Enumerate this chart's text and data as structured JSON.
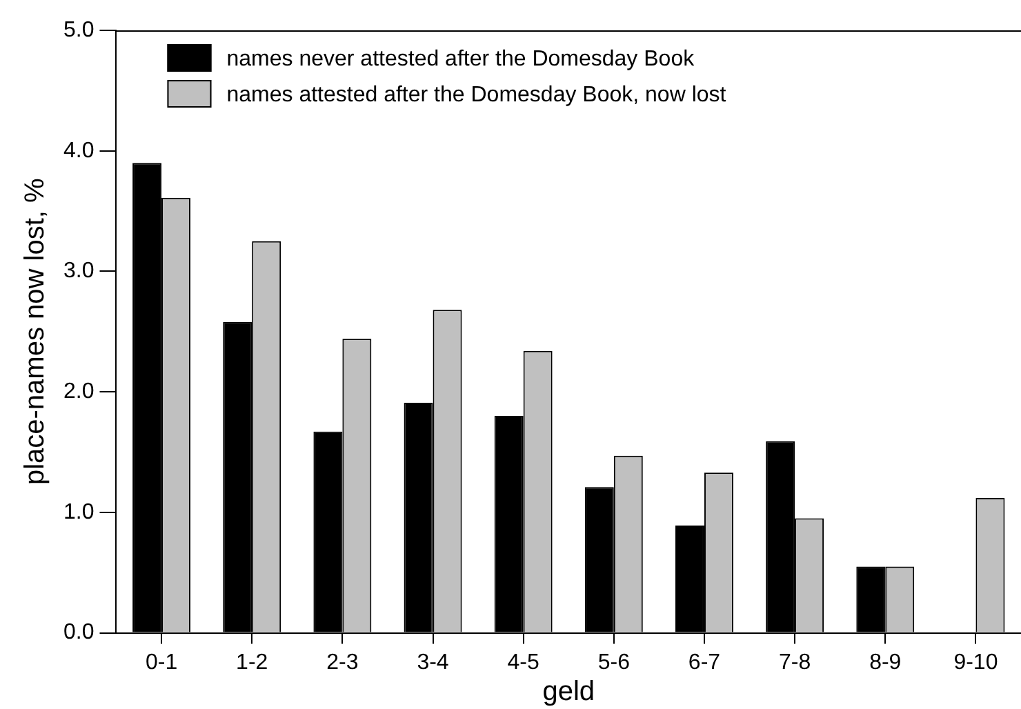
{
  "chart_data": {
    "type": "bar",
    "xlabel": "geld",
    "ylabel": "place-names now lost, %",
    "categories": [
      "0-1",
      "1-2",
      "2-3",
      "3-4",
      "4-5",
      "5-6",
      "6-7",
      "7-8",
      "8-9",
      "9-10"
    ],
    "series": [
      {
        "name": "names never attested after the Domesday Book",
        "color": "#000000",
        "values": [
          3.9,
          2.58,
          1.67,
          1.91,
          1.8,
          1.21,
          0.89,
          1.59,
          0.55,
          null
        ]
      },
      {
        "name": "names attested after the Domesday Book, now lost",
        "color": "#c0c0c0",
        "values": [
          3.61,
          3.25,
          2.44,
          2.68,
          2.34,
          1.47,
          1.33,
          0.95,
          0.55,
          1.12
        ]
      }
    ],
    "ylim": [
      0,
      5
    ],
    "yticks": [
      {
        "value": 0,
        "label": "0.0"
      },
      {
        "value": 1,
        "label": "1.0"
      },
      {
        "value": 2,
        "label": "2.0"
      },
      {
        "value": 3,
        "label": "3.0"
      },
      {
        "value": 4,
        "label": "4.0"
      },
      {
        "value": 5,
        "label": "5.0"
      }
    ],
    "grid": false,
    "legend": "top left"
  }
}
